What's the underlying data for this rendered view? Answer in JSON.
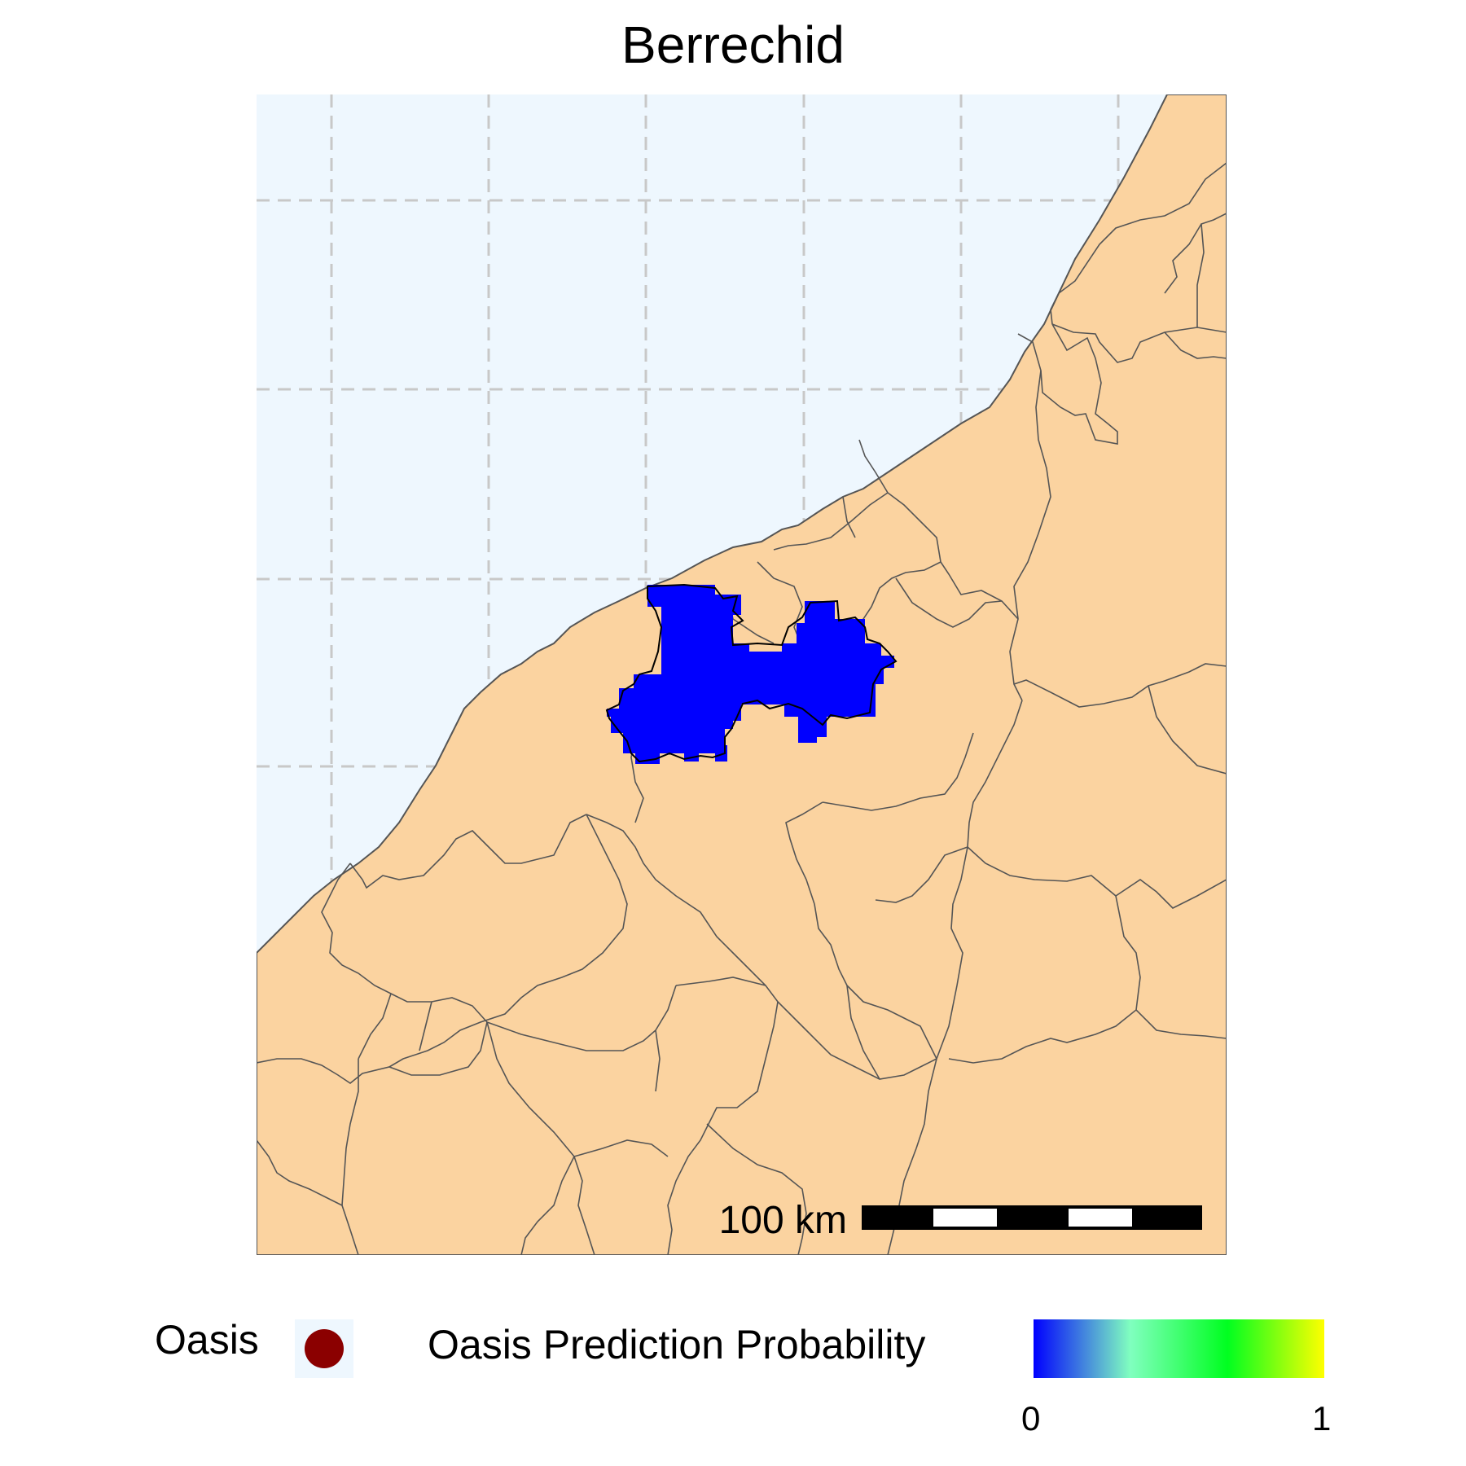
{
  "title": "Berrechid",
  "map": {
    "sea_color": "#eef7fe",
    "land_color": "#fbd3a0",
    "boundary_color": "#555555",
    "grid": "dashed",
    "region_fill_color": "#0000ff",
    "region_name": "Berrechid"
  },
  "scale_bar": {
    "label": "100 km"
  },
  "legend": {
    "oasis_label": "Oasis",
    "oasis_color": "#8b0000",
    "probability_label": "Oasis Prediction Probability",
    "colorbar_min": "0",
    "colorbar_max": "1",
    "colorbar_colors": [
      "#0000ff",
      "#80ffbf",
      "#00ff20",
      "#ffff00"
    ]
  }
}
